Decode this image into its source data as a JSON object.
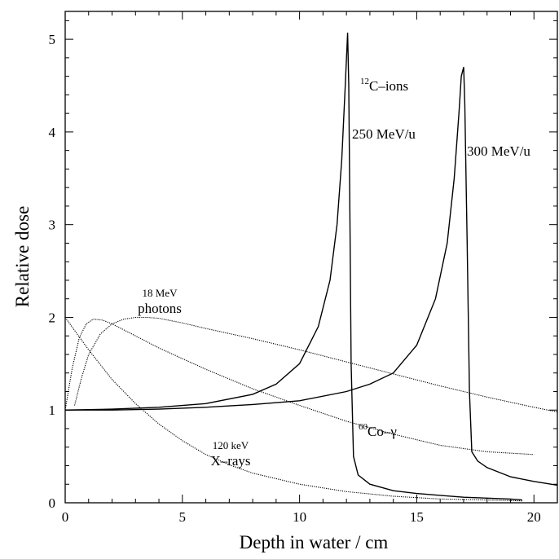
{
  "chart_data": {
    "type": "line",
    "xlabel": "Depth in water / cm",
    "ylabel": "Relative dose",
    "xlim": [
      0,
      21
    ],
    "ylim": [
      0,
      5.3
    ],
    "xticks": [
      0,
      5,
      10,
      15,
      20
    ],
    "yticks": [
      0,
      1,
      2,
      3,
      4,
      5
    ],
    "grid": false,
    "annotations": {
      "carbon_ions": {
        "sup": "12",
        "text": "C–ions"
      },
      "c250": "250 MeV/u",
      "c300": "300 MeV/u",
      "photons_energy": "18 MeV",
      "photons": "photons",
      "cobalt": {
        "sup": "60",
        "text": "Co–γ"
      },
      "xray_energy": "120 keV",
      "xrays": "X–rays"
    },
    "series": [
      {
        "id": "c250",
        "style": "solid",
        "x": [
          0,
          2,
          4,
          6,
          8,
          9,
          10,
          10.8,
          11.3,
          11.6,
          11.8,
          11.95,
          12.05,
          12.1,
          12.15,
          12.2,
          12.3,
          12.5,
          13,
          14,
          15,
          16,
          17,
          18,
          19,
          19.5
        ],
        "y": [
          1.0,
          1.01,
          1.03,
          1.07,
          1.17,
          1.28,
          1.5,
          1.9,
          2.4,
          3.0,
          3.7,
          4.5,
          5.07,
          4.5,
          3.0,
          1.5,
          0.5,
          0.3,
          0.2,
          0.13,
          0.1,
          0.08,
          0.06,
          0.05,
          0.04,
          0.03
        ]
      },
      {
        "id": "c300",
        "style": "solid",
        "x": [
          0,
          2,
          4,
          6,
          8,
          10,
          12,
          13,
          14,
          15,
          15.8,
          16.3,
          16.6,
          16.8,
          16.9,
          17.0,
          17.05,
          17.15,
          17.25,
          17.35,
          17.6,
          18,
          19,
          20,
          21
        ],
        "y": [
          1.0,
          1.0,
          1.01,
          1.03,
          1.06,
          1.1,
          1.2,
          1.28,
          1.4,
          1.7,
          2.2,
          2.8,
          3.5,
          4.2,
          4.6,
          4.7,
          4.3,
          2.8,
          1.2,
          0.55,
          0.45,
          0.38,
          0.28,
          0.23,
          0.19
        ]
      },
      {
        "id": "photons-18mev",
        "style": "dotted",
        "x": [
          0.4,
          0.7,
          1,
          1.5,
          2,
          2.5,
          3,
          3.5,
          4,
          5,
          6,
          8,
          10,
          12,
          14,
          16,
          18,
          20,
          21
        ],
        "y": [
          1.05,
          1.35,
          1.6,
          1.82,
          1.93,
          1.98,
          2.0,
          2.0,
          1.99,
          1.94,
          1.88,
          1.77,
          1.65,
          1.52,
          1.39,
          1.26,
          1.14,
          1.03,
          0.98
        ]
      },
      {
        "id": "co60-gamma",
        "style": "dotted",
        "x": [
          0,
          0.3,
          0.6,
          0.9,
          1.2,
          1.6,
          2,
          3,
          4,
          6,
          8,
          10,
          12,
          14,
          16,
          18,
          20
        ],
        "y": [
          1.0,
          1.45,
          1.78,
          1.93,
          1.98,
          1.97,
          1.93,
          1.8,
          1.67,
          1.44,
          1.23,
          1.05,
          0.88,
          0.74,
          0.62,
          0.55,
          0.52
        ]
      },
      {
        "id": "xrays-120kev",
        "style": "dotted",
        "x": [
          0,
          1,
          2,
          3,
          4,
          5,
          6,
          7,
          8,
          10,
          12,
          14,
          16,
          18,
          19.5
        ],
        "y": [
          2.0,
          1.65,
          1.33,
          1.07,
          0.85,
          0.67,
          0.52,
          0.41,
          0.32,
          0.2,
          0.12,
          0.07,
          0.04,
          0.03,
          0.02
        ]
      }
    ]
  }
}
